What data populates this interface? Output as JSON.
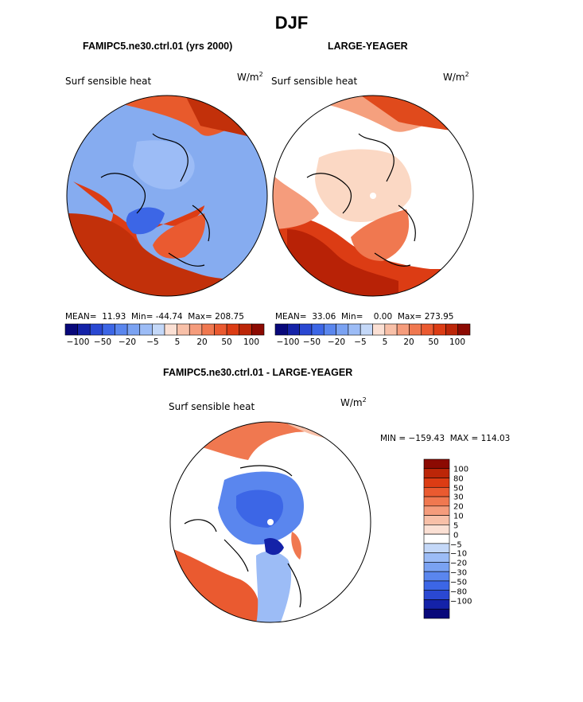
{
  "figure_title": "DJF",
  "chart_data": [
    {
      "type": "heatmap",
      "projection": "north polar stereographic",
      "title": "FAMIPC5.ne30.ctrl.01 (yrs 2000)",
      "variable": "Surf sensible heat",
      "units_base": "W/m",
      "units_exp": "2",
      "stats": {
        "mean_label": "MEAN=",
        "mean": "11.93",
        "min_label": "Min=",
        "min": "-44.74",
        "max_label": "Max=",
        "max": "208.75"
      },
      "levels": [
        -100,
        -80,
        -60,
        -50,
        -40,
        -30,
        -20,
        -10,
        -5,
        0,
        5,
        10,
        20,
        30,
        50,
        80,
        100
      ],
      "tick_labels": [
        "−100",
        "−50",
        "−20",
        "−5",
        "5",
        "20",
        "50",
        "100"
      ]
    },
    {
      "type": "heatmap",
      "projection": "north polar stereographic",
      "title": "LARGE-YEAGER",
      "variable": "Surf sensible heat",
      "units_base": "W/m",
      "units_exp": "2",
      "stats": {
        "mean_label": "MEAN=",
        "mean": "33.06",
        "min_label": "Min=",
        "min": "0.00",
        "max_label": "Max=",
        "max": "273.95"
      },
      "levels": [
        -100,
        -80,
        -60,
        -50,
        -40,
        -30,
        -20,
        -10,
        -5,
        0,
        5,
        10,
        20,
        30,
        50,
        80,
        100
      ],
      "tick_labels": [
        "−100",
        "−50",
        "−20",
        "−5",
        "5",
        "20",
        "50",
        "100"
      ]
    },
    {
      "type": "heatmap",
      "projection": "north polar stereographic",
      "title": "FAMIPC5.ne30.ctrl.01 - LARGE-YEAGER",
      "variable": "Surf sensible heat",
      "units_base": "W/m",
      "units_exp": "2",
      "stats_text": "MIN = −159.43  MAX = 114.03",
      "levels": [
        -100,
        -80,
        -50,
        -30,
        -20,
        -10,
        -5,
        0,
        5,
        10,
        20,
        30,
        50,
        80,
        100
      ],
      "tick_labels": [
        "100",
        "80",
        "50",
        "30",
        "20",
        "10",
        "5",
        "0",
        "−5",
        "−10",
        "−20",
        "−30",
        "−50",
        "−80",
        "−100"
      ]
    }
  ],
  "colors": {
    "horizontal_bar": [
      "#08087a",
      "#1422a8",
      "#2a48d2",
      "#3c66e6",
      "#5a86ee",
      "#7aa2f2",
      "#9cbcf6",
      "#c4d8f8",
      "#fbe0d4",
      "#f8c0a8",
      "#f59c7c",
      "#f07850",
      "#ea5a30",
      "#dc3c14",
      "#bc2608",
      "#8c0a02"
    ],
    "vertical_bar": [
      "#8c0a02",
      "#bc2608",
      "#dc3c14",
      "#ea5a30",
      "#f07850",
      "#f59c7c",
      "#f8c0a8",
      "#fbe0d4",
      "#ffffff",
      "#c4d8f8",
      "#9cbcf6",
      "#7aa2f2",
      "#5a86ee",
      "#3c66e6",
      "#2a48d2",
      "#1422a8",
      "#08087a"
    ],
    "warm": "#e0501c",
    "deep_warm": "#c2300a",
    "cool": "#7ba3ef",
    "deep_cool": "#2f5fe0"
  }
}
